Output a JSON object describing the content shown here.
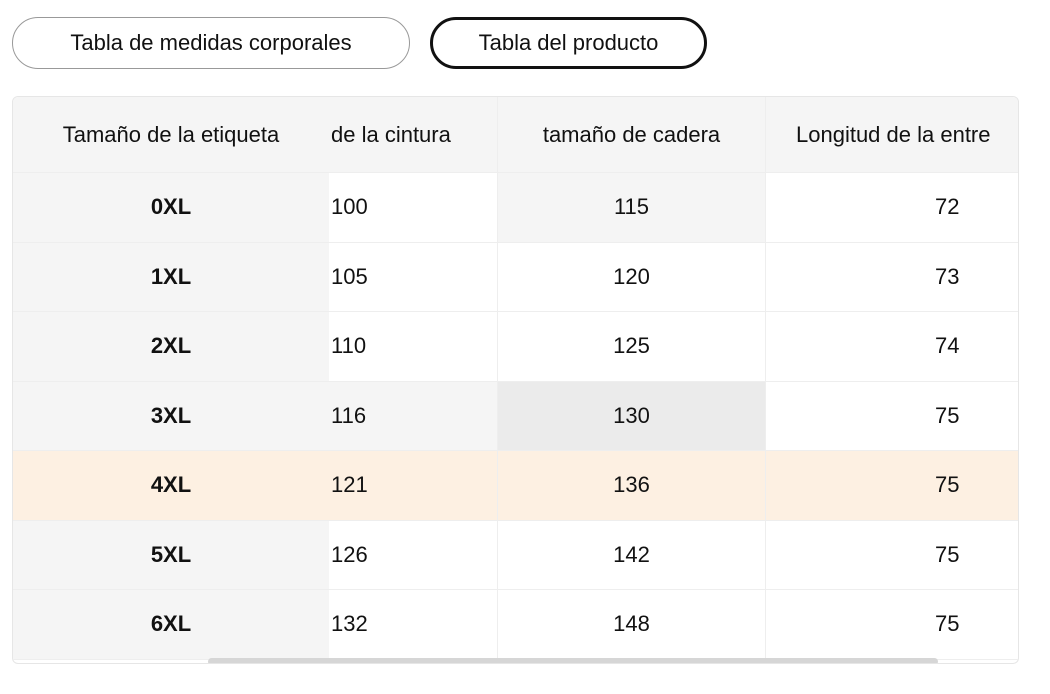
{
  "tabs": [
    "Tabla de medidas corporales",
    "Tabla del producto"
  ],
  "table": {
    "header": [
      "Tamaño de la etiqueta",
      "de la cintura",
      "tamaño de cadera",
      "Longitud de la entre"
    ],
    "rows": [
      [
        "0XL",
        100,
        115,
        72
      ],
      [
        "1XL",
        105,
        120,
        73
      ],
      [
        "2XL",
        110,
        125,
        74
      ],
      [
        "3XL",
        116,
        130,
        75
      ],
      [
        "4XL",
        121,
        136,
        75
      ],
      [
        "5XL",
        126,
        142,
        75
      ],
      [
        "6XL",
        132,
        148,
        75
      ]
    ]
  }
}
